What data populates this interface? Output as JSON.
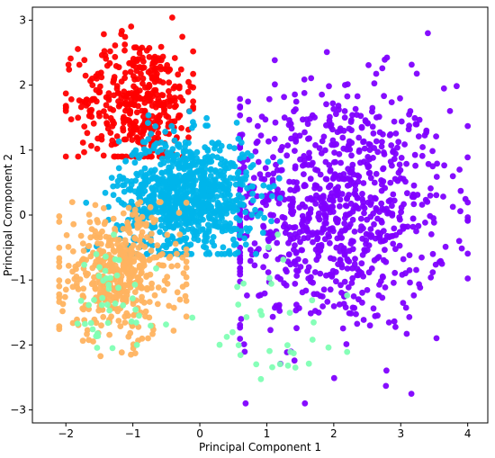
{
  "chart_data": {
    "type": "scatter",
    "title": "",
    "xlabel": "Principal Component 1",
    "ylabel": "Principal Component 2",
    "xlim": [
      -2.5,
      4.3
    ],
    "ylim": [
      -3.2,
      3.2
    ],
    "x_ticks": [
      -2,
      -1,
      0,
      1,
      2,
      3,
      4
    ],
    "y_ticks": [
      -3,
      -2,
      -1,
      0,
      1,
      2,
      3
    ],
    "x_tick_labels": [
      "−2",
      "−1",
      "0",
      "1",
      "2",
      "3",
      "4"
    ],
    "y_tick_labels": [
      "−3",
      "−2",
      "−1",
      "0",
      "1",
      "2",
      "3"
    ],
    "grid": false,
    "legend": "none",
    "series": [
      {
        "color": "#8000ff",
        "clusters": [
          {
            "center": [
              2.0,
              0.1
            ],
            "spread": [
              0.85,
              0.95
            ],
            "count": 900
          }
        ],
        "extents": {
          "x": [
            0.6,
            4.0
          ],
          "y": [
            -2.9,
            2.8
          ]
        }
      },
      {
        "color": "#ff0000",
        "clusters": [
          {
            "center": [
              -0.9,
              1.75
            ],
            "spread": [
              0.45,
              0.5
            ],
            "count": 400
          }
        ],
        "extents": {
          "x": [
            -2.0,
            -0.1
          ],
          "y": [
            0.9,
            3.1
          ]
        }
      },
      {
        "color": "#00b5eb",
        "clusters": [
          {
            "center": [
              -0.2,
              0.3
            ],
            "spread": [
              0.5,
              0.45
            ],
            "count": 900
          }
        ],
        "extents": {
          "x": [
            -1.9,
            1.2
          ],
          "y": [
            -0.6,
            2.0
          ]
        }
      },
      {
        "color": "#ffb360",
        "clusters": [
          {
            "center": [
              -1.2,
              -0.9
            ],
            "spread": [
              0.45,
              0.5
            ],
            "count": 450
          }
        ],
        "extents": {
          "x": [
            -2.1,
            -0.2
          ],
          "y": [
            -2.4,
            0.2
          ]
        }
      },
      {
        "color": "#80ffb4",
        "clusters": [
          {
            "center": [
              -1.4,
              -1.4
            ],
            "spread": [
              0.4,
              0.5
            ],
            "count": 45
          },
          {
            "center": [
              1.2,
              -1.6
            ],
            "spread": [
              0.6,
              0.7
            ],
            "count": 35
          }
        ],
        "extents": {
          "x": [
            -2.2,
            2.2
          ],
          "y": [
            -2.9,
            -0.3
          ]
        }
      }
    ]
  }
}
